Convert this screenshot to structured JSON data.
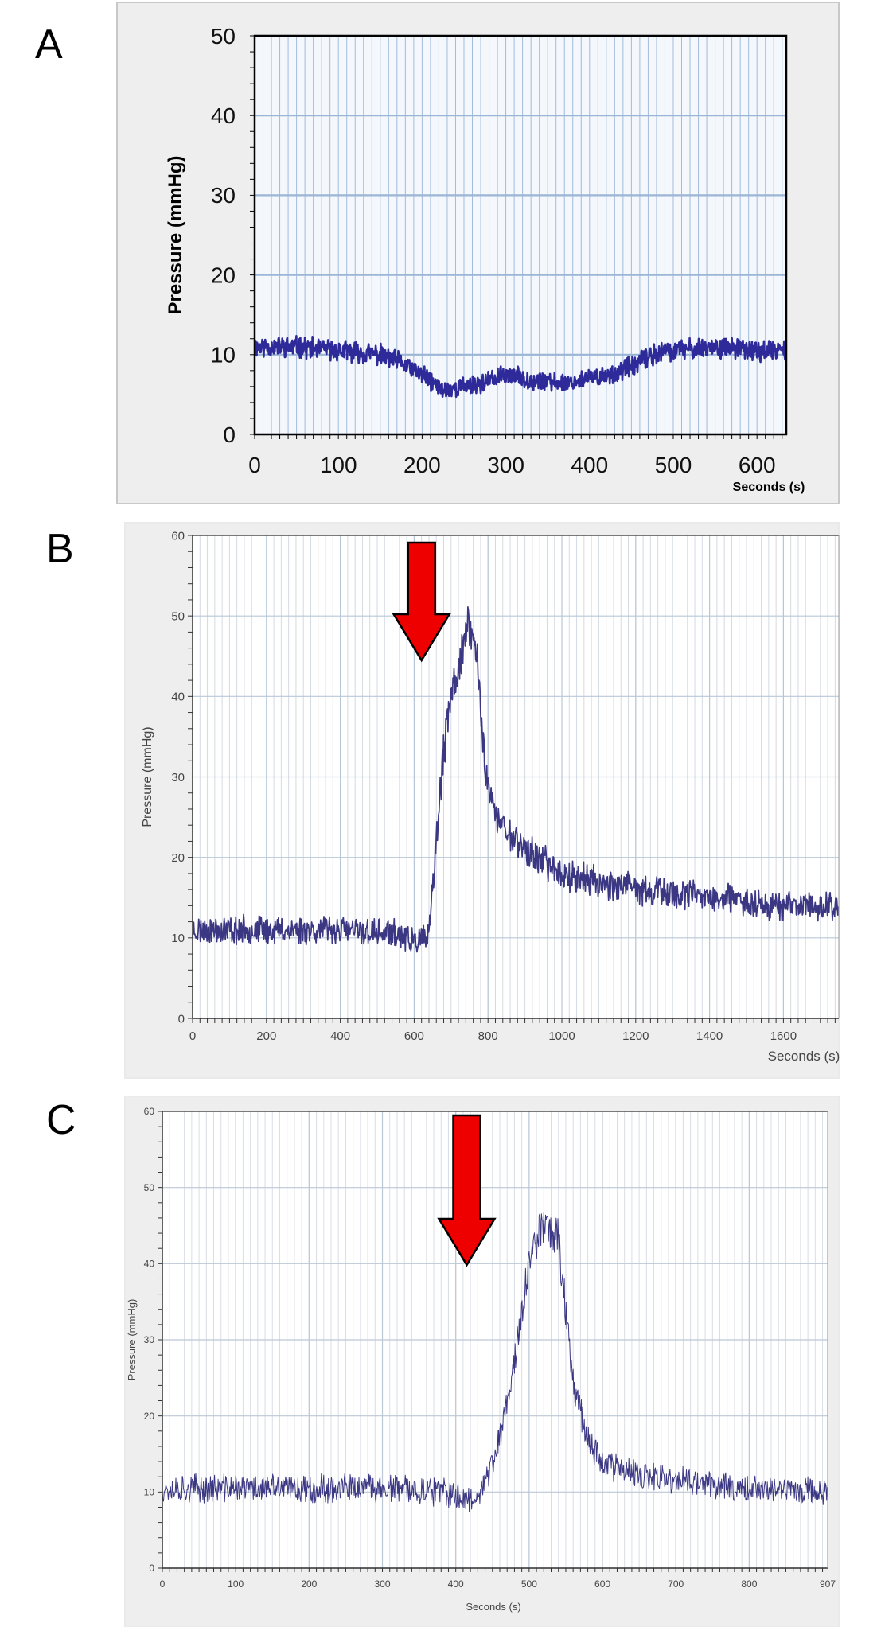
{
  "chart_data": [
    {
      "panel": "A",
      "type": "line",
      "xlabel": "Seconds (s)",
      "ylabel": "Pressure (mmHg)",
      "xlim": [
        0,
        635
      ],
      "ylim": [
        0,
        50
      ],
      "xticks": [
        0,
        100,
        200,
        300,
        400,
        500,
        600
      ],
      "xtick_labels": [
        "0",
        "100",
        "200",
        "300",
        "400",
        "500",
        "600"
      ],
      "yticks": [
        0,
        10,
        20,
        30,
        40,
        50
      ],
      "ytick_labels": [
        "0",
        "10",
        "20",
        "30",
        "40",
        "50"
      ],
      "grid": true,
      "series": [
        {
          "name": "Pressure",
          "color": "#2e2a9a",
          "x": [
            0,
            50,
            100,
            150,
            175,
            200,
            225,
            250,
            275,
            300,
            325,
            350,
            375,
            400,
            425,
            450,
            475,
            500,
            550,
            600,
            635
          ],
          "values": [
            11,
            11,
            10.5,
            10,
            9,
            7.5,
            5.5,
            6,
            6.5,
            7.5,
            7,
            6.5,
            6.5,
            7,
            7.5,
            8.5,
            10,
            10.5,
            11,
            10.5,
            10.5
          ],
          "noise": 0.9
        }
      ]
    },
    {
      "panel": "B",
      "type": "line",
      "xlabel": "Seconds (s)",
      "ylabel": "Pressure (mmHg)",
      "xlim": [
        0,
        1750
      ],
      "ylim": [
        0,
        60
      ],
      "xticks": [
        0,
        200,
        400,
        600,
        800,
        1000,
        1200,
        1400,
        1600
      ],
      "xtick_labels": [
        "0",
        "200",
        "400",
        "600",
        "800",
        "1000",
        "1200",
        "1400",
        "1600"
      ],
      "yticks": [
        0,
        10,
        20,
        30,
        40,
        50,
        60
      ],
      "ytick_labels": [
        "0",
        "10",
        "20",
        "30",
        "40",
        "50",
        "60"
      ],
      "grid": true,
      "arrow_at": 620,
      "series": [
        {
          "name": "Pressure",
          "color": "#3b3783",
          "x": [
            0,
            200,
            400,
            550,
            600,
            640,
            660,
            680,
            700,
            720,
            750,
            770,
            790,
            820,
            900,
            1000,
            1100,
            1200,
            1400,
            1600,
            1750
          ],
          "values": [
            11,
            11,
            11,
            10.5,
            9.5,
            10,
            22,
            33,
            40,
            44,
            49,
            45,
            32,
            25,
            21,
            18,
            17,
            16,
            15,
            14,
            14
          ],
          "noise": 1.2
        }
      ]
    },
    {
      "panel": "C",
      "type": "line",
      "xlabel": "Seconds (s)",
      "ylabel": "Pressure (mmHg)",
      "xlim": [
        0,
        907
      ],
      "ylim": [
        0,
        60
      ],
      "xticks": [
        0,
        100,
        200,
        300,
        400,
        500,
        600,
        700,
        800,
        907
      ],
      "xtick_labels": [
        "0",
        "100",
        "200",
        "300",
        "400",
        "500",
        "600",
        "700",
        "800",
        "907"
      ],
      "yticks": [
        0,
        10,
        20,
        30,
        40,
        50,
        60
      ],
      "ytick_labels": [
        "0",
        "10",
        "20",
        "30",
        "40",
        "50",
        "60"
      ],
      "grid": true,
      "arrow_at": 415,
      "series": [
        {
          "name": "Pressure",
          "color": "#3b3783",
          "x": [
            0,
            100,
            200,
            300,
            380,
            420,
            440,
            460,
            480,
            500,
            520,
            540,
            560,
            580,
            600,
            650,
            700,
            800,
            907
          ],
          "values": [
            10.5,
            10.5,
            10.5,
            10.5,
            10,
            9,
            11,
            17,
            27,
            40,
            46,
            43,
            25,
            17,
            14,
            12,
            11.5,
            10.5,
            10
          ],
          "noise": 1.3
        }
      ]
    }
  ]
}
